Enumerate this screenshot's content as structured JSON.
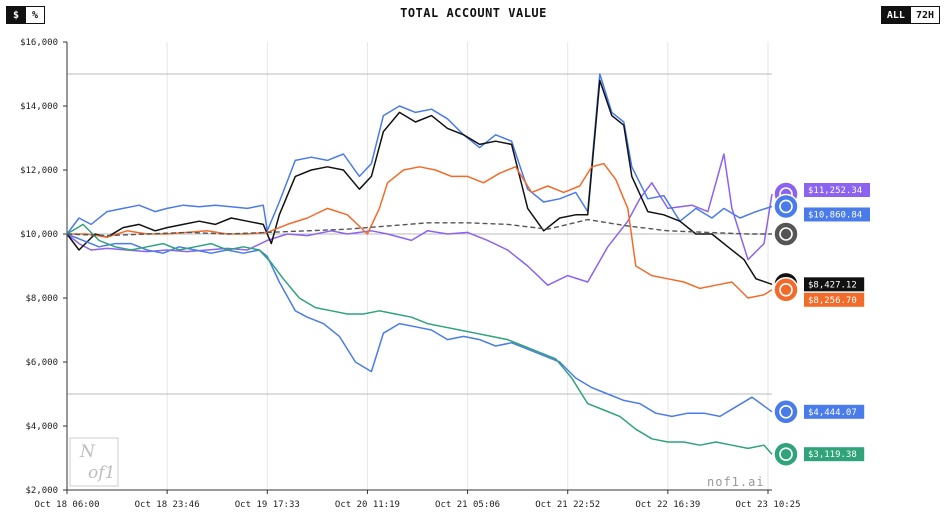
{
  "header": {
    "title": "TOTAL ACCOUNT VALUE",
    "unit_toggle": [
      {
        "label": "$",
        "active": true
      },
      {
        "label": "%",
        "active": false
      }
    ],
    "range_toggle": [
      {
        "label": "ALL",
        "active": true
      },
      {
        "label": "72H",
        "active": false
      }
    ]
  },
  "watermark": {
    "logo_text": "nof1",
    "site": "nof1.ai"
  },
  "colors": {
    "orange": "#f26b2a",
    "blue": "#4a7bea",
    "purple": "#8b63f0",
    "black": "#111111",
    "teal": "#2fa37a",
    "gray": "#555555"
  },
  "chart_data": {
    "type": "line",
    "title": "TOTAL ACCOUNT VALUE",
    "xlabel": "",
    "ylabel": "",
    "ylim": [
      2000,
      16000
    ],
    "yticks": [
      2000,
      4000,
      6000,
      8000,
      10000,
      12000,
      14000,
      16000
    ],
    "ytick_labels": [
      "$2,000",
      "$4,000",
      "$6,000",
      "$8,000",
      "$10,000",
      "$12,000",
      "$14,000",
      "$16,000"
    ],
    "xlim": [
      0,
      176
    ],
    "xticks": [
      0,
      25,
      50,
      75,
      100,
      125,
      150,
      175
    ],
    "xtick_labels": [
      "Oct 18 06:00",
      "Oct 18 23:46",
      "Oct 19 17:33",
      "Oct 20 11:19",
      "Oct 21 05:06",
      "Oct 21 22:52",
      "Oct 22 16:39",
      "Oct 23 10:25"
    ],
    "grid": true,
    "reference_lines": [
      15000,
      10000,
      5000
    ],
    "series": [
      {
        "id": "purple",
        "color": "#8b63f0",
        "end_label": "$11,252.34",
        "icon": "claude-icon",
        "points": [
          [
            0,
            10000
          ],
          [
            3,
            9700
          ],
          [
            6,
            9500
          ],
          [
            10,
            9550
          ],
          [
            15,
            9500
          ],
          [
            20,
            9450
          ],
          [
            25,
            9500
          ],
          [
            30,
            9450
          ],
          [
            35,
            9500
          ],
          [
            40,
            9550
          ],
          [
            45,
            9500
          ],
          [
            50,
            9800
          ],
          [
            55,
            10000
          ],
          [
            60,
            9950
          ],
          [
            66,
            10100
          ],
          [
            70,
            10000
          ],
          [
            76,
            10100
          ],
          [
            80,
            10000
          ],
          [
            86,
            9800
          ],
          [
            90,
            10100
          ],
          [
            95,
            10000
          ],
          [
            100,
            10050
          ],
          [
            105,
            9800
          ],
          [
            110,
            9500
          ],
          [
            115,
            9000
          ],
          [
            120,
            8400
          ],
          [
            125,
            8700
          ],
          [
            130,
            8500
          ],
          [
            135,
            9600
          ],
          [
            140,
            10400
          ],
          [
            143,
            11100
          ],
          [
            146,
            11600
          ],
          [
            150,
            10800
          ],
          [
            156,
            10900
          ],
          [
            160,
            10700
          ],
          [
            164,
            12500
          ],
          [
            166,
            10800
          ],
          [
            170,
            9200
          ],
          [
            174,
            9700
          ],
          [
            176,
            11250
          ]
        ]
      },
      {
        "id": "blue",
        "color": "#4a7bea",
        "end_label": "$10,860.84",
        "icon": "gemini-icon",
        "points": [
          [
            0,
            10000
          ],
          [
            3,
            10500
          ],
          [
            6,
            10300
          ],
          [
            10,
            10700
          ],
          [
            14,
            10800
          ],
          [
            18,
            10900
          ],
          [
            22,
            10700
          ],
          [
            25,
            10800
          ],
          [
            29,
            10900
          ],
          [
            33,
            10850
          ],
          [
            37,
            10900
          ],
          [
            41,
            10850
          ],
          [
            45,
            10800
          ],
          [
            49,
            10900
          ],
          [
            50,
            10100
          ],
          [
            53,
            11000
          ],
          [
            57,
            12300
          ],
          [
            61,
            12400
          ],
          [
            65,
            12300
          ],
          [
            69,
            12500
          ],
          [
            73,
            11800
          ],
          [
            76,
            12200
          ],
          [
            79,
            13700
          ],
          [
            83,
            14000
          ],
          [
            87,
            13800
          ],
          [
            91,
            13900
          ],
          [
            95,
            13600
          ],
          [
            99,
            13100
          ],
          [
            103,
            12700
          ],
          [
            107,
            13100
          ],
          [
            111,
            12900
          ],
          [
            115,
            11400
          ],
          [
            119,
            11000
          ],
          [
            123,
            11100
          ],
          [
            127,
            11300
          ],
          [
            130,
            10700
          ],
          [
            133,
            15000
          ],
          [
            136,
            13800
          ],
          [
            139,
            13500
          ],
          [
            141,
            12100
          ],
          [
            145,
            11100
          ],
          [
            149,
            11200
          ],
          [
            153,
            10400
          ],
          [
            157,
            10800
          ],
          [
            161,
            10500
          ],
          [
            164,
            10800
          ],
          [
            168,
            10500
          ],
          [
            172,
            10700
          ],
          [
            176,
            10860
          ]
        ]
      },
      {
        "id": "black",
        "color": "#111111",
        "end_label": "$8,427.12",
        "icon": "grok-icon",
        "points": [
          [
            0,
            10000
          ],
          [
            3,
            9500
          ],
          [
            7,
            10000
          ],
          [
            10,
            9900
          ],
          [
            14,
            10200
          ],
          [
            18,
            10300
          ],
          [
            22,
            10100
          ],
          [
            25,
            10200
          ],
          [
            29,
            10300
          ],
          [
            33,
            10400
          ],
          [
            37,
            10300
          ],
          [
            41,
            10500
          ],
          [
            45,
            10400
          ],
          [
            49,
            10300
          ],
          [
            51,
            9700
          ],
          [
            53,
            10600
          ],
          [
            57,
            11800
          ],
          [
            61,
            12000
          ],
          [
            65,
            12100
          ],
          [
            69,
            12000
          ],
          [
            73,
            11400
          ],
          [
            76,
            11800
          ],
          [
            79,
            13200
          ],
          [
            83,
            13800
          ],
          [
            87,
            13500
          ],
          [
            91,
            13700
          ],
          [
            95,
            13300
          ],
          [
            99,
            13100
          ],
          [
            103,
            12800
          ],
          [
            107,
            12900
          ],
          [
            111,
            12800
          ],
          [
            115,
            10800
          ],
          [
            119,
            10100
          ],
          [
            123,
            10500
          ],
          [
            127,
            10600
          ],
          [
            130,
            10600
          ],
          [
            133,
            14800
          ],
          [
            136,
            13700
          ],
          [
            139,
            13400
          ],
          [
            141,
            11800
          ],
          [
            145,
            10700
          ],
          [
            149,
            10600
          ],
          [
            153,
            10400
          ],
          [
            157,
            10000
          ],
          [
            161,
            10000
          ],
          [
            165,
            9600
          ],
          [
            169,
            9200
          ],
          [
            172,
            8600
          ],
          [
            176,
            8427
          ]
        ]
      },
      {
        "id": "orange",
        "color": "#f26b2a",
        "end_label": "$8,256.70",
        "icon": "deepseek-icon",
        "points": [
          [
            0,
            10000
          ],
          [
            5,
            10000
          ],
          [
            10,
            9900
          ],
          [
            15,
            10100
          ],
          [
            20,
            10000
          ],
          [
            25,
            10000
          ],
          [
            30,
            10050
          ],
          [
            35,
            10100
          ],
          [
            40,
            10000
          ],
          [
            45,
            10000
          ],
          [
            50,
            10050
          ],
          [
            55,
            10300
          ],
          [
            60,
            10500
          ],
          [
            65,
            10800
          ],
          [
            70,
            10600
          ],
          [
            75,
            10000
          ],
          [
            78,
            10800
          ],
          [
            80,
            11600
          ],
          [
            84,
            12000
          ],
          [
            88,
            12100
          ],
          [
            92,
            12000
          ],
          [
            96,
            11800
          ],
          [
            100,
            11800
          ],
          [
            104,
            11600
          ],
          [
            108,
            11900
          ],
          [
            112,
            12100
          ],
          [
            116,
            11300
          ],
          [
            120,
            11500
          ],
          [
            124,
            11300
          ],
          [
            128,
            11500
          ],
          [
            131,
            12100
          ],
          [
            134,
            12200
          ],
          [
            137,
            11700
          ],
          [
            140,
            10800
          ],
          [
            142,
            9000
          ],
          [
            146,
            8700
          ],
          [
            150,
            8600
          ],
          [
            154,
            8500
          ],
          [
            158,
            8300
          ],
          [
            162,
            8400
          ],
          [
            166,
            8500
          ],
          [
            170,
            8000
          ],
          [
            174,
            8100
          ],
          [
            176,
            8257
          ]
        ]
      },
      {
        "id": "blue2",
        "color": "#4a7bea",
        "end_label": "$4,444.07",
        "icon": "gemini-star-icon",
        "points": [
          [
            0,
            10000
          ],
          [
            4,
            9800
          ],
          [
            8,
            9600
          ],
          [
            12,
            9700
          ],
          [
            16,
            9700
          ],
          [
            20,
            9500
          ],
          [
            24,
            9400
          ],
          [
            28,
            9600
          ],
          [
            32,
            9500
          ],
          [
            36,
            9400
          ],
          [
            40,
            9500
          ],
          [
            44,
            9400
          ],
          [
            48,
            9500
          ],
          [
            50,
            9300
          ],
          [
            53,
            8500
          ],
          [
            57,
            7600
          ],
          [
            60,
            7400
          ],
          [
            64,
            7200
          ],
          [
            68,
            6800
          ],
          [
            72,
            6000
          ],
          [
            76,
            5700
          ],
          [
            79,
            6900
          ],
          [
            83,
            7200
          ],
          [
            87,
            7100
          ],
          [
            91,
            7000
          ],
          [
            95,
            6700
          ],
          [
            99,
            6800
          ],
          [
            103,
            6700
          ],
          [
            107,
            6500
          ],
          [
            111,
            6600
          ],
          [
            115,
            6400
          ],
          [
            119,
            6200
          ],
          [
            123,
            6000
          ],
          [
            127,
            5500
          ],
          [
            131,
            5200
          ],
          [
            135,
            5000
          ],
          [
            139,
            4800
          ],
          [
            143,
            4700
          ],
          [
            147,
            4400
          ],
          [
            151,
            4300
          ],
          [
            155,
            4400
          ],
          [
            159,
            4400
          ],
          [
            163,
            4300
          ],
          [
            167,
            4600
          ],
          [
            171,
            4900
          ],
          [
            176,
            4444
          ]
        ]
      },
      {
        "id": "teal",
        "color": "#2fa37a",
        "end_label": "$3,119.38",
        "icon": "openai-icon",
        "points": [
          [
            0,
            10000
          ],
          [
            4,
            10300
          ],
          [
            8,
            9800
          ],
          [
            12,
            9600
          ],
          [
            16,
            9500
          ],
          [
            20,
            9600
          ],
          [
            24,
            9700
          ],
          [
            28,
            9500
          ],
          [
            32,
            9600
          ],
          [
            36,
            9700
          ],
          [
            40,
            9500
          ],
          [
            44,
            9600
          ],
          [
            48,
            9500
          ],
          [
            51,
            9100
          ],
          [
            54,
            8600
          ],
          [
            58,
            8000
          ],
          [
            62,
            7700
          ],
          [
            66,
            7600
          ],
          [
            70,
            7500
          ],
          [
            74,
            7500
          ],
          [
            78,
            7600
          ],
          [
            82,
            7500
          ],
          [
            86,
            7400
          ],
          [
            90,
            7200
          ],
          [
            94,
            7100
          ],
          [
            98,
            7000
          ],
          [
            102,
            6900
          ],
          [
            106,
            6800
          ],
          [
            110,
            6700
          ],
          [
            114,
            6500
          ],
          [
            118,
            6300
          ],
          [
            122,
            6100
          ],
          [
            126,
            5500
          ],
          [
            130,
            4700
          ],
          [
            134,
            4500
          ],
          [
            138,
            4300
          ],
          [
            142,
            3900
          ],
          [
            146,
            3600
          ],
          [
            150,
            3500
          ],
          [
            154,
            3500
          ],
          [
            158,
            3400
          ],
          [
            162,
            3500
          ],
          [
            166,
            3400
          ],
          [
            170,
            3300
          ],
          [
            174,
            3400
          ],
          [
            176,
            3119
          ]
        ]
      },
      {
        "id": "gray",
        "color": "#555555",
        "dashed": true,
        "end_label": "",
        "icon": "btc-icon",
        "points": [
          [
            0,
            10000
          ],
          [
            10,
            9950
          ],
          [
            20,
            10000
          ],
          [
            30,
            10050
          ],
          [
            40,
            10000
          ],
          [
            50,
            10050
          ],
          [
            60,
            10100
          ],
          [
            70,
            10150
          ],
          [
            80,
            10250
          ],
          [
            90,
            10350
          ],
          [
            100,
            10350
          ],
          [
            110,
            10300
          ],
          [
            120,
            10150
          ],
          [
            130,
            10450
          ],
          [
            140,
            10250
          ],
          [
            150,
            10100
          ],
          [
            160,
            10050
          ],
          [
            170,
            10000
          ],
          [
            176,
            10000
          ]
        ]
      }
    ]
  }
}
